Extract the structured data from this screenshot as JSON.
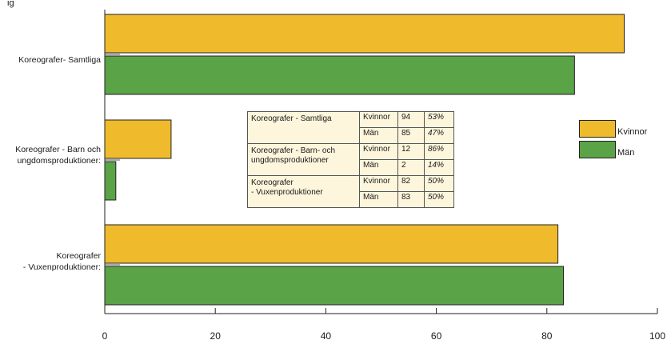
{
  "chart_data": {
    "type": "bar",
    "orientation": "horizontal",
    "categories": [
      "Koreografer- Samtliga",
      "Koreografer - Barn och\nungdomsproduktioner:",
      "Koreografer\n- Vuxenproduktioner:"
    ],
    "series": [
      {
        "name": "Kvinnor",
        "values": [
          94,
          12,
          82
        ],
        "color": "#efbb2c"
      },
      {
        "name": "Män",
        "values": [
          85,
          2,
          83
        ],
        "color": "#5ba347"
      }
    ],
    "xlim": [
      0,
      100
    ],
    "xticks": [
      "0",
      "20",
      "40",
      "60",
      "80",
      "100"
    ],
    "legend_position": "right",
    "grid": false,
    "top_clipped_text": "ig"
  },
  "table": {
    "rows": [
      {
        "category": "Koreografer - Samtliga",
        "group": "Kvinnor",
        "count": "94",
        "pct": "53%"
      },
      {
        "category": "",
        "group": "Män",
        "count": "85",
        "pct": "47%"
      },
      {
        "category": "Koreografer - Barn- och ungdomsproduktioner",
        "group": "Kvinnor",
        "count": "12",
        "pct": "86%"
      },
      {
        "category": "",
        "group": "Män",
        "count": "2",
        "pct": "14%"
      },
      {
        "category": "Koreografer\n- Vuxenproduktioner",
        "group": "Kvinnor",
        "count": "82",
        "pct": "50%"
      },
      {
        "category": "",
        "group": "Män",
        "count": "83",
        "pct": "50%"
      }
    ]
  }
}
